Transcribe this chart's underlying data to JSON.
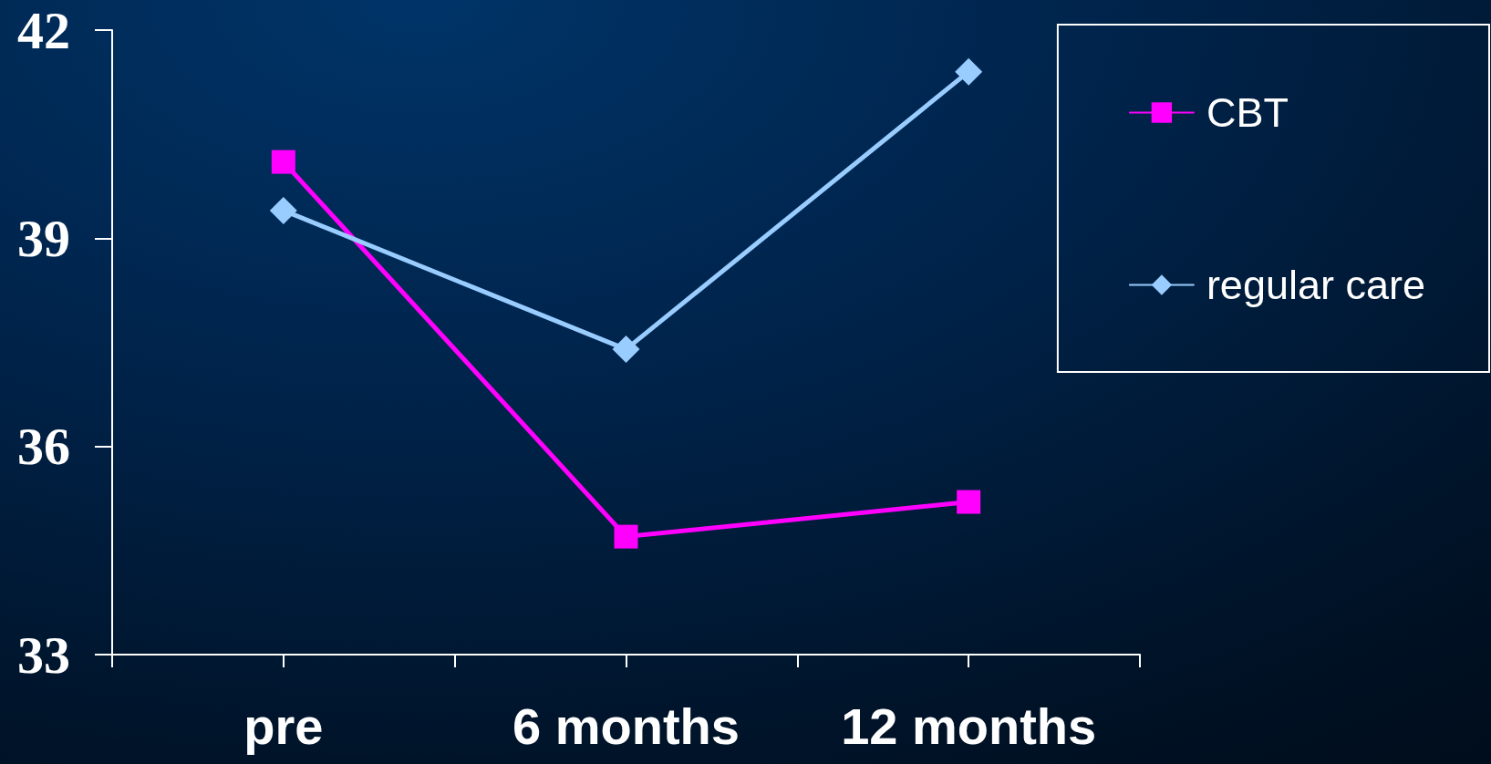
{
  "chart_data": {
    "type": "line",
    "categories": [
      "pre",
      "6 months",
      "12 months"
    ],
    "series": [
      {
        "name": "CBT",
        "color": "#ff00ff",
        "values": [
          40.1,
          34.7,
          35.2
        ],
        "marker": "square"
      },
      {
        "name": "regular care",
        "color": "#99ccff",
        "values": [
          39.4,
          37.4,
          41.4
        ],
        "marker": "diamond"
      }
    ],
    "ylim": [
      33,
      42
    ],
    "yticks": [
      33,
      36,
      39,
      42
    ],
    "legend": "top right",
    "line_style": "solid"
  }
}
